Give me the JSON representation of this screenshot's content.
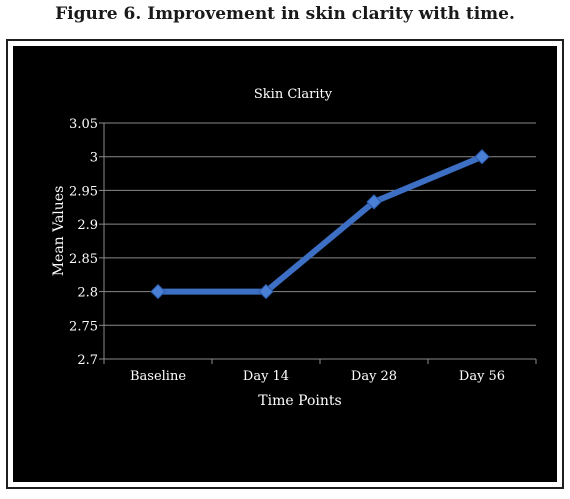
{
  "figure": {
    "caption": "Figure 6. Improvement in skin clarity with time."
  },
  "chart_data": {
    "type": "line",
    "title": "Skin Clarity",
    "xlabel": "Time Points",
    "ylabel": "Mean Values",
    "categories": [
      "Baseline",
      "Day 14",
      "Day 28",
      "Day 56"
    ],
    "series": [
      {
        "values": [
          2.8,
          2.8,
          2.933,
          3.0
        ]
      }
    ],
    "ylim": [
      2.7,
      3.05
    ],
    "yticks": [
      "2.7",
      "2.75",
      "2.8",
      "2.85",
      "2.9",
      "2.95",
      "3",
      "3.05"
    ],
    "grid": true,
    "legend": "none",
    "colors": {
      "background": "#000000",
      "line": "#3d6fc4",
      "grid": "#8a8a8a",
      "text": "#ffffff"
    }
  }
}
